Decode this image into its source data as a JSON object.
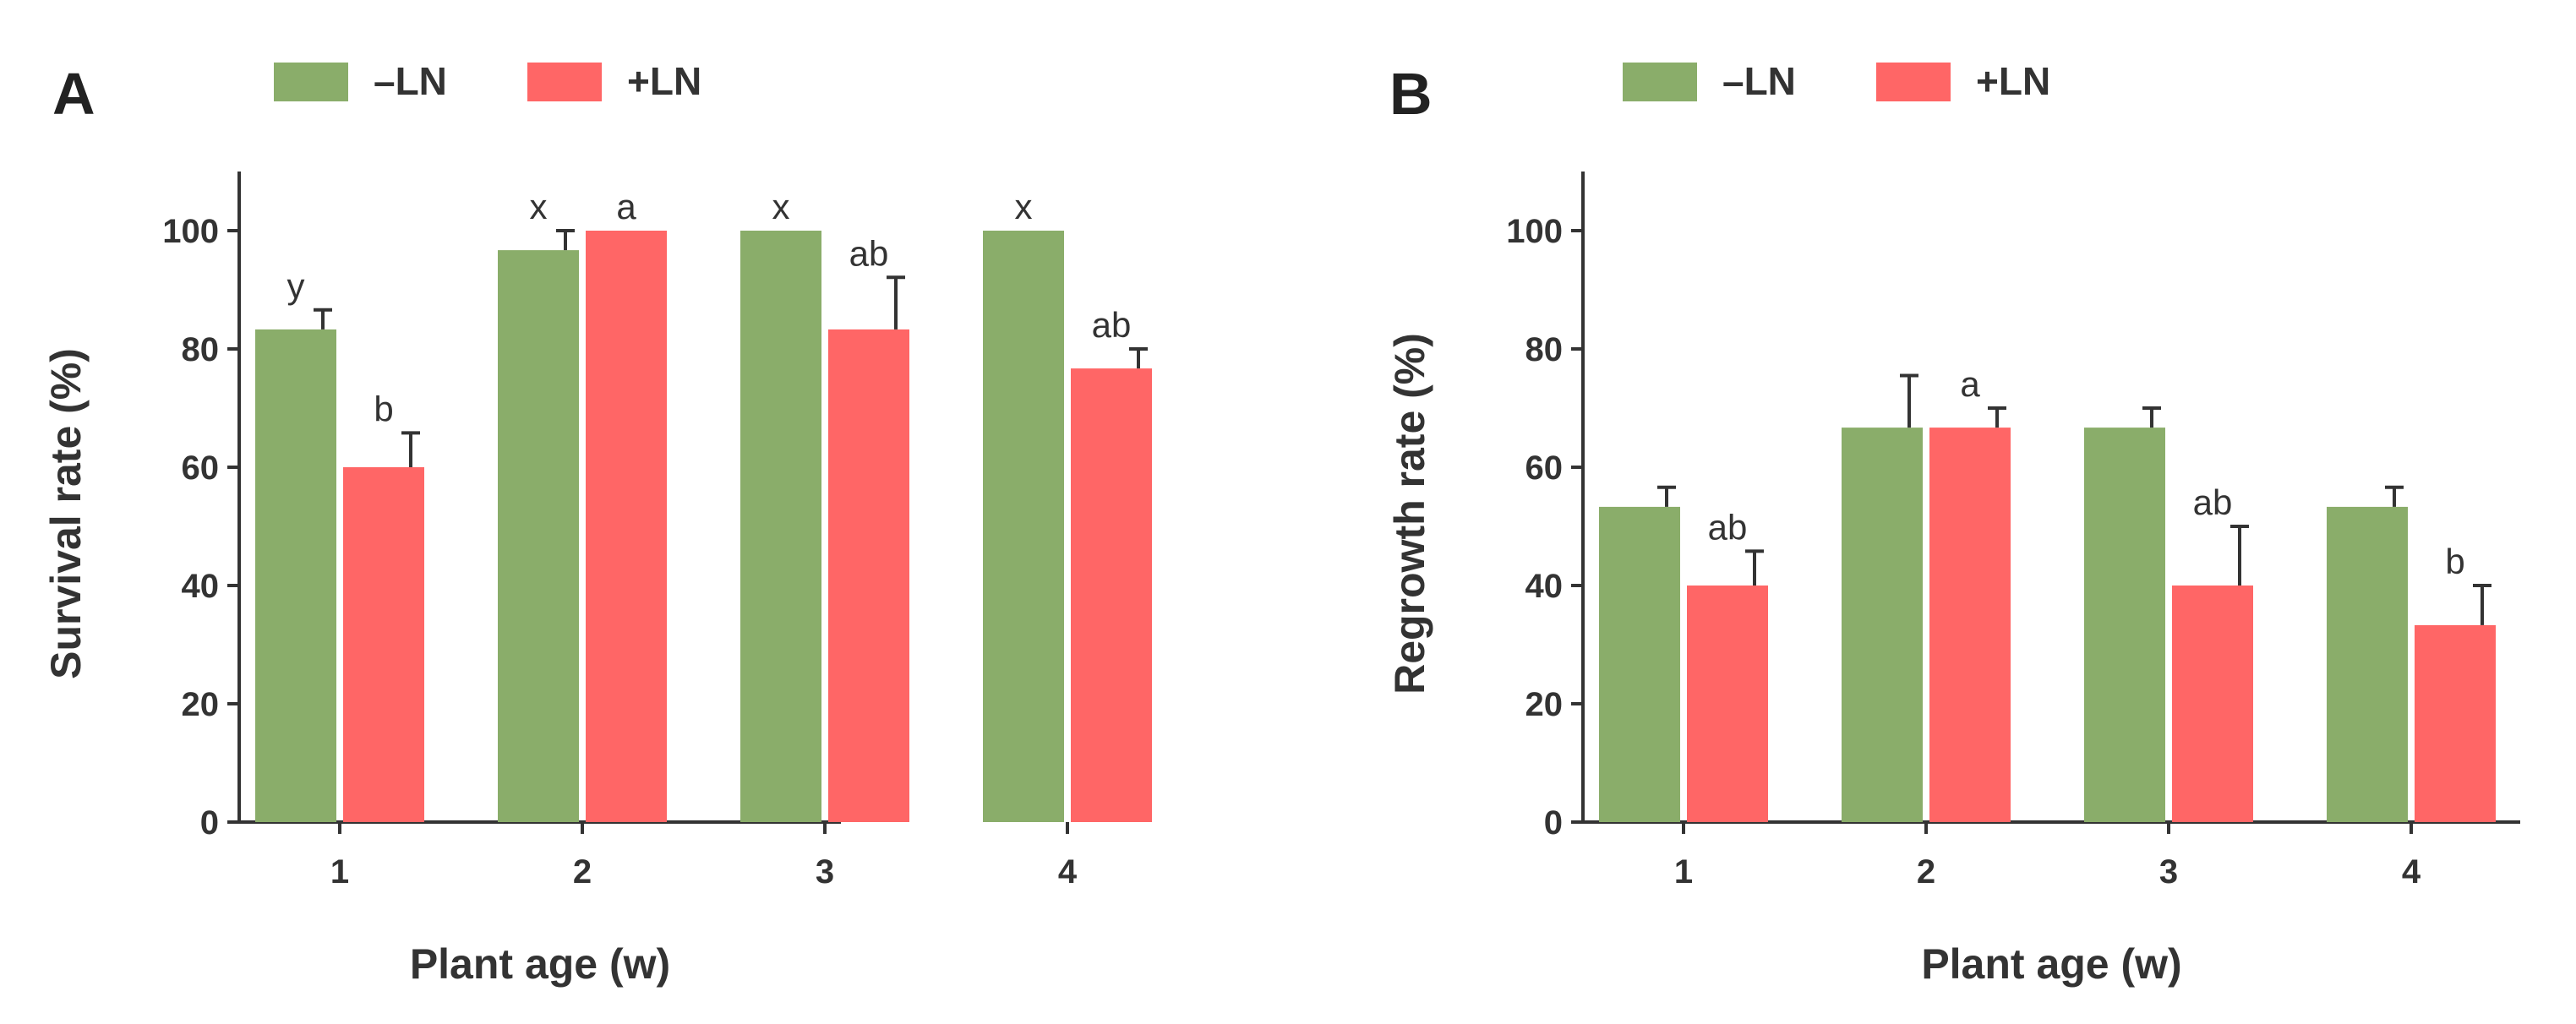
{
  "colors": {
    "minus_ln": "#8aad6a",
    "plus_ln": "#ff6666",
    "axis": "#333333"
  },
  "chart_data": [
    {
      "panel": "A",
      "type": "bar",
      "xlabel": "Plant age (w)",
      "ylabel": "Survival rate (%)",
      "ylim": [
        0,
        110
      ],
      "yticks": [
        0,
        20,
        40,
        60,
        80,
        100
      ],
      "categories": [
        "1",
        "2",
        "3",
        "4"
      ],
      "legend_position": "top-center",
      "series": [
        {
          "name": "–LN",
          "values": [
            83.3,
            96.7,
            100,
            100
          ],
          "errors": [
            3.3,
            3.3,
            0,
            0
          ],
          "labels": [
            "y",
            "x",
            "x",
            "x"
          ]
        },
        {
          "name": "+LN",
          "values": [
            60,
            100,
            83.3,
            76.7
          ],
          "errors": [
            5.8,
            0,
            8.8,
            3.3
          ],
          "labels": [
            "b",
            "a",
            "ab",
            "ab"
          ]
        }
      ]
    },
    {
      "panel": "B",
      "type": "bar",
      "xlabel": "Plant age (w)",
      "ylabel": "Regrowth rate (%)",
      "ylim": [
        0,
        110
      ],
      "yticks": [
        0,
        20,
        40,
        60,
        80,
        100
      ],
      "categories": [
        "1",
        "2",
        "3",
        "4"
      ],
      "legend_position": "top-center",
      "series": [
        {
          "name": "–LN",
          "values": [
            53.3,
            66.7,
            66.7,
            53.3
          ],
          "errors": [
            3.3,
            8.8,
            3.3,
            3.3
          ],
          "labels": [
            "",
            "",
            "",
            ""
          ]
        },
        {
          "name": "+LN",
          "values": [
            40,
            66.7,
            40,
            33.3
          ],
          "errors": [
            5.8,
            3.3,
            10,
            6.7
          ],
          "labels": [
            "ab",
            "a",
            "ab",
            "b"
          ]
        }
      ]
    }
  ]
}
